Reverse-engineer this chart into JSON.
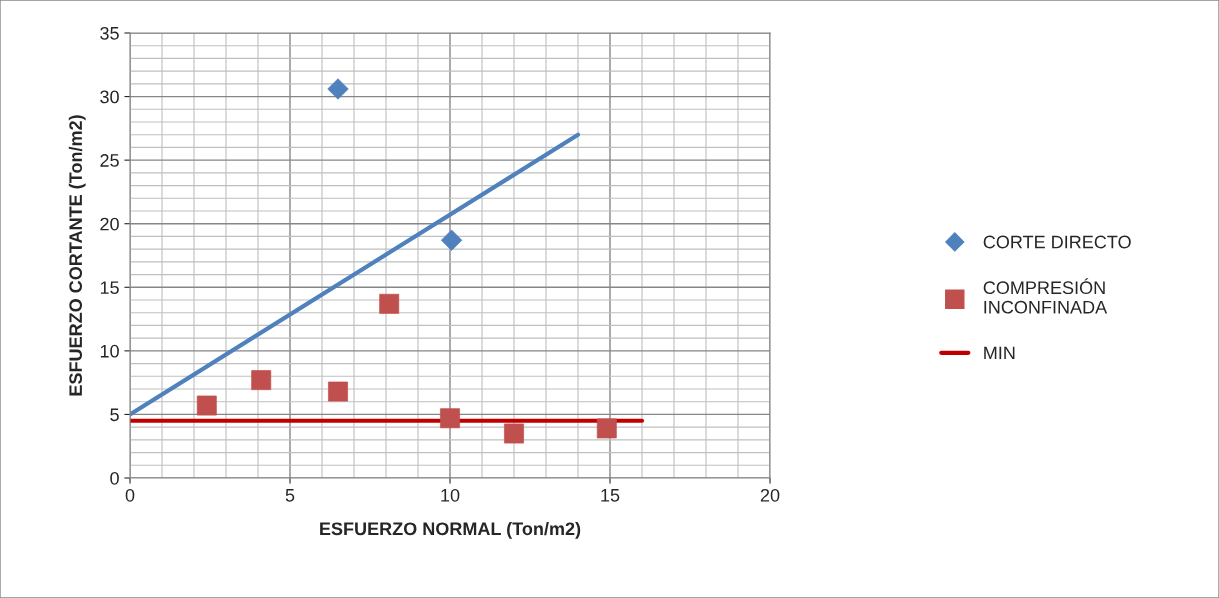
{
  "chart_data": {
    "type": "scatter",
    "xlabel": "ESFUERZO NORMAL (Ton/m2)",
    "ylabel": "ESFUERZO CORTANTE (Ton/m2)",
    "xlim": [
      0,
      20
    ],
    "ylim": [
      0,
      35
    ],
    "xticks": [
      0,
      5,
      10,
      15,
      20
    ],
    "yticks": [
      0,
      5,
      10,
      15,
      20,
      25,
      30,
      35
    ],
    "grid": true,
    "legend": "right",
    "series": [
      {
        "name": "CORTE DIRECTO",
        "marker": "diamond",
        "color": "#4f81bd",
        "x": [
          6.5,
          10.05
        ],
        "values": [
          30.6,
          18.7
        ]
      },
      {
        "name": "COMPRESIÓN INCONFINADA",
        "marker": "square",
        "color": "#c0504d",
        "x": [
          2.4,
          4.1,
          6.5,
          8.1,
          10.0,
          12.0,
          14.9
        ],
        "values": [
          5.7,
          7.7,
          6.8,
          13.7,
          4.7,
          3.5,
          3.9
        ]
      },
      {
        "type": "line",
        "marker": "none",
        "color": "#4f81bd",
        "x": [
          0,
          14
        ],
        "values": [
          5,
          27
        ]
      },
      {
        "name": "MIN",
        "type": "line",
        "marker": "none",
        "color": "#c00000",
        "x": [
          0,
          16
        ],
        "values": [
          4.5,
          4.5
        ]
      }
    ]
  }
}
